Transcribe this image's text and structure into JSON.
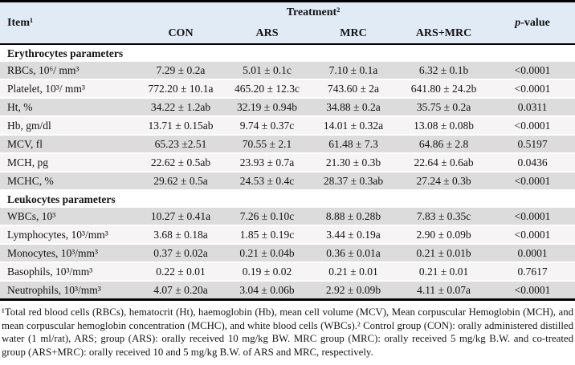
{
  "table": {
    "header": {
      "item": "Item¹",
      "treatment": "Treatment²",
      "pvalue_p": "p",
      "pvalue_rest": "-value",
      "groups": [
        "CON",
        "ARS",
        "MRC",
        "ARS+MRC"
      ]
    },
    "sections": [
      {
        "title": "Erythrocytes parameters",
        "rows": [
          {
            "label": "RBCs, 10⁶/ mm³",
            "values": [
              "7.29 ± 0.2a",
              "5.01 ± 0.1c",
              "7.10 ± 0.1a",
              "6.32 ± 0.1b"
            ],
            "p": "<0.0001"
          },
          {
            "label": "Platelet, 10³/ mm³",
            "values": [
              "772.20 ± 10.1a",
              "465.20 ± 12.3c",
              "743.60 ± 2a",
              "641.80 ± 24.2b"
            ],
            "p": "<0.0001"
          },
          {
            "label": "Ht, %",
            "values": [
              "34.22 ± 1.2ab",
              "32.19 ± 0.94b",
              "34.88 ± 0.2a",
              "35.75 ± 0.2a"
            ],
            "p": "0.0311"
          },
          {
            "label": "Hb, gm/dl",
            "values": [
              "13.71 ± 0.15ab",
              "9.74 ± 0.37c",
              "14.01 ± 0.32a",
              "13.08 ± 0.08b"
            ],
            "p": "<0.0001"
          },
          {
            "label": "MCV, fl",
            "values": [
              "65.23 ±2.51",
              "70.55 ± 2.1",
              "61.48 ± 7.3",
              "64.86 ± 2.8"
            ],
            "p": "0.5197"
          },
          {
            "label": "MCH, pg",
            "values": [
              "22.62 ± 0.5ab",
              "23.93 ± 0.7a",
              "21.30 ± 0.3b",
              "22.64 ± 0.6ab"
            ],
            "p": "0.0436"
          },
          {
            "label": "MCHC, %",
            "values": [
              "29.62 ± 0.5a",
              "24.53 ± 0.4c",
              "28.37 ± 0.3ab",
              "27.24 ± 0.3b"
            ],
            "p": "<0.0001"
          }
        ]
      },
      {
        "title": "Leukocytes parameters",
        "rows": [
          {
            "label": "WBCs, 10³",
            "values": [
              "10.27 ± 0.41a",
              "7.26 ± 0.10c",
              "8.88 ± 0.28b",
              "7.83 ± 0.35c"
            ],
            "p": "<0.0001"
          },
          {
            "label": "Lymphocytes, 10³/mm³",
            "values": [
              "3.68 ± 0.18a",
              "1.85 ± 0.19c",
              "3.44 ± 0.19a",
              "2.90 ± 0.09b"
            ],
            "p": "<0.0001"
          },
          {
            "label": "Monocytes, 10³/mm³",
            "values": [
              "0.37 ± 0.02a",
              "0.21 ± 0.04b",
              "0.36 ± 0.01a",
              "0.21 ± 0.01b"
            ],
            "p": "0.0001"
          },
          {
            "label": "Basophils, 10³/mm³",
            "values": [
              "0.22 ± 0.01",
              "0.19 ± 0.02",
              "0.21 ± 0.01",
              "0.21 ± 0.01"
            ],
            "p": "0.7617"
          },
          {
            "label": "Neutrophils, 10³/mm³",
            "values": [
              "4.07 ± 0.20a",
              "3.04 ± 0.06b",
              "2.92 ± 0.09b",
              "4.11 ± 0.07a"
            ],
            "p": "<0.0001"
          }
        ]
      }
    ],
    "footnote": "¹Total red blood cells (RBCs), hematocrit (Ht), haemoglobin (Hb), mean cell volume (MCV), Mean corpuscular Hemoglobin (MCH), and mean corpuscular hemoglobin concentration (MCHC), and white blood cells (WBCs).² Control group (CON): orally administered distilled water (1 ml/rat), ARS; group (ARS): orally received 10 mg/kg BW. MRC group (MRC): orally received 5 mg/kg B.W. and co-treated group (ARS+MRC): orally received 10 and 5 mg/kg B.W. of ARS and MRC, respectively."
  },
  "colors": {
    "header_bg": "#e1ebf6",
    "row_gray": "#dcdcdc",
    "row_light": "#f6f4f4",
    "rule": "#000000"
  }
}
